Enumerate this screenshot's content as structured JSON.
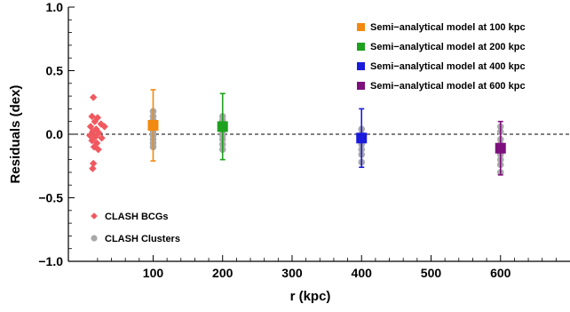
{
  "chart_data": {
    "type": "scatter",
    "xlabel": "r (kpc)",
    "ylabel": "Residuals (dex)",
    "xlim": [
      -22,
      700
    ],
    "ylim": [
      -1.0,
      1.0
    ],
    "x_ticks": [
      {
        "v": 100,
        "label": "100"
      },
      {
        "v": 200,
        "label": "200"
      },
      {
        "v": 300,
        "label": "300"
      },
      {
        "v": 400,
        "label": "400"
      },
      {
        "v": 500,
        "label": "500"
      },
      {
        "v": 600,
        "label": "600"
      }
    ],
    "y_ticks": [
      {
        "v": 1.0,
        "label": "1.0"
      },
      {
        "v": 0.5,
        "label": "0.5"
      },
      {
        "v": 0.0,
        "label": "0.0"
      },
      {
        "v": -0.5,
        "label": "−0.5"
      },
      {
        "v": -1.0,
        "label": "−1.0"
      }
    ],
    "reference_line": {
      "y": 0.0,
      "style": "dashed"
    },
    "series": [
      {
        "name": "CLASH BCGs",
        "marker": "diamond",
        "color": "#f0595f",
        "points": [
          {
            "x": 14,
            "y": 0.29
          },
          {
            "x": 12,
            "y": 0.14
          },
          {
            "x": 20,
            "y": 0.13
          },
          {
            "x": 16,
            "y": 0.1
          },
          {
            "x": 25,
            "y": 0.08
          },
          {
            "x": 10,
            "y": 0.06
          },
          {
            "x": 30,
            "y": 0.06
          },
          {
            "x": 18,
            "y": 0.04
          },
          {
            "x": 13,
            "y": 0.02
          },
          {
            "x": 22,
            "y": 0.01
          },
          {
            "x": 9,
            "y": -0.01
          },
          {
            "x": 17,
            "y": -0.02
          },
          {
            "x": 26,
            "y": -0.03
          },
          {
            "x": 12,
            "y": -0.05
          },
          {
            "x": 19,
            "y": -0.07
          },
          {
            "x": 15,
            "y": -0.1
          },
          {
            "x": 21,
            "y": -0.12
          },
          {
            "x": 14,
            "y": -0.23
          },
          {
            "x": 13,
            "y": -0.27
          }
        ]
      },
      {
        "name": "CLASH Clusters",
        "marker": "circle",
        "color": "#a8a8a8",
        "points": [
          {
            "x": 100,
            "y": 0.18
          },
          {
            "x": 100,
            "y": 0.14
          },
          {
            "x": 100,
            "y": 0.11
          },
          {
            "x": 100,
            "y": 0.08
          },
          {
            "x": 100,
            "y": 0.05
          },
          {
            "x": 100,
            "y": 0.02
          },
          {
            "x": 100,
            "y": -0.01
          },
          {
            "x": 100,
            "y": -0.04
          },
          {
            "x": 100,
            "y": -0.07
          },
          {
            "x": 100,
            "y": -0.1
          },
          {
            "x": 200,
            "y": 0.14
          },
          {
            "x": 200,
            "y": 0.11
          },
          {
            "x": 200,
            "y": 0.08
          },
          {
            "x": 200,
            "y": 0.05
          },
          {
            "x": 200,
            "y": 0.02
          },
          {
            "x": 200,
            "y": -0.01
          },
          {
            "x": 200,
            "y": -0.04
          },
          {
            "x": 200,
            "y": -0.08
          },
          {
            "x": 200,
            "y": -0.12
          },
          {
            "x": 400,
            "y": 0.04
          },
          {
            "x": 400,
            "y": 0.0
          },
          {
            "x": 400,
            "y": -0.04
          },
          {
            "x": 400,
            "y": -0.08
          },
          {
            "x": 400,
            "y": -0.12
          },
          {
            "x": 400,
            "y": -0.16
          },
          {
            "x": 400,
            "y": -0.22
          },
          {
            "x": 600,
            "y": 0.06
          },
          {
            "x": 600,
            "y": 0.02
          },
          {
            "x": 600,
            "y": -0.04
          },
          {
            "x": 600,
            "y": -0.08
          },
          {
            "x": 600,
            "y": -0.12
          },
          {
            "x": 600,
            "y": -0.16
          },
          {
            "x": 600,
            "y": -0.2
          },
          {
            "x": 600,
            "y": -0.24
          },
          {
            "x": 600,
            "y": -0.3
          }
        ]
      },
      {
        "name": "Semi−analytical model at 100 kpc",
        "marker": "square",
        "color": "#f28a0f",
        "points": [
          {
            "x": 100,
            "y": 0.07,
            "yerr_low": 0.28,
            "yerr_high": 0.28
          }
        ]
      },
      {
        "name": "Semi−analytical model at 200 kpc",
        "marker": "square",
        "color": "#1ea11e",
        "points": [
          {
            "x": 200,
            "y": 0.06,
            "yerr_low": 0.26,
            "yerr_high": 0.26
          }
        ]
      },
      {
        "name": "Semi−analytical model at 400 kpc",
        "marker": "square",
        "color": "#1b1bdc",
        "points": [
          {
            "x": 400,
            "y": -0.03,
            "yerr_low": 0.23,
            "yerr_high": 0.23
          }
        ]
      },
      {
        "name": "Semi−analytical model at 600 kpc",
        "marker": "square",
        "color": "#7d107d",
        "points": [
          {
            "x": 600,
            "y": -0.11,
            "yerr_low": 0.21,
            "yerr_high": 0.21
          }
        ]
      }
    ],
    "legends": [
      {
        "placement": "top-right",
        "entries": [
          2,
          3,
          4,
          5
        ]
      },
      {
        "placement": "bottom-left",
        "entries": [
          0,
          1
        ]
      }
    ],
    "grid": false
  }
}
